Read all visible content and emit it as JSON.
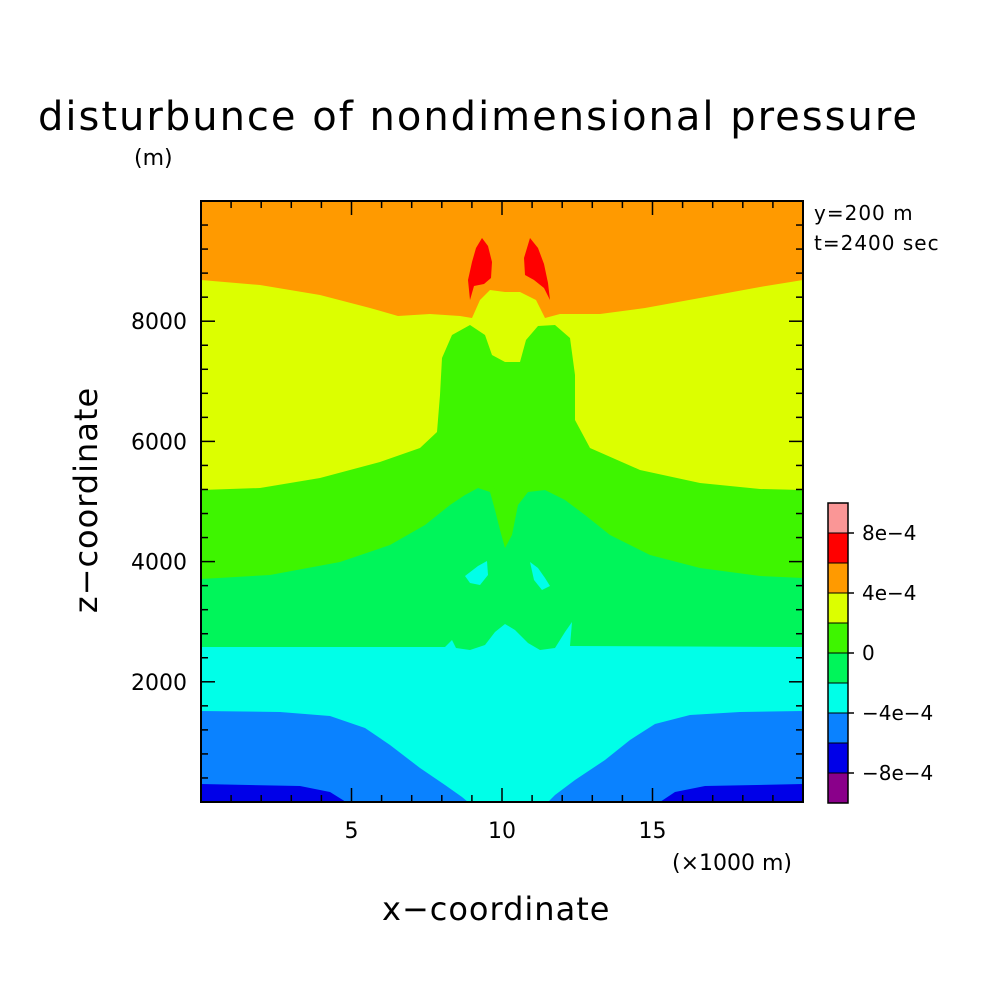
{
  "chart_data": {
    "type": "heatmap",
    "subtype": "filled-contour",
    "title": "disturbunce of nondimensional pressure",
    "xlabel": "x−coordinate",
    "ylabel": "z−coordinate",
    "x_unit": "(×1000 m)",
    "y_unit": "(m)",
    "annotations": [
      "y=200 m",
      "t=2400 sec"
    ],
    "xlim": [
      0,
      20000
    ],
    "ylim": [
      0,
      10000
    ],
    "x_ticks": [
      {
        "value": 5000,
        "label": "5"
      },
      {
        "value": 10000,
        "label": "10"
      },
      {
        "value": 15000,
        "label": "15"
      }
    ],
    "y_ticks": [
      {
        "value": 2000,
        "label": "2000"
      },
      {
        "value": 4000,
        "label": "4000"
      },
      {
        "value": 6000,
        "label": "6000"
      },
      {
        "value": 8000,
        "label": "8000"
      }
    ],
    "colorbar": {
      "labels": [
        "8e−4",
        "4e−4",
        "0",
        "−4e−4",
        "−8e−4"
      ],
      "levels_bottom_to_top": [
        {
          "range": [
            -0.0012,
            -0.0008
          ],
          "color": "#8a008a"
        },
        {
          "range": [
            -0.0008,
            -0.0006
          ],
          "color": "#0000e8"
        },
        {
          "range": [
            -0.0006,
            -0.0004
          ],
          "color": "#0a82ff"
        },
        {
          "range": [
            -0.0004,
            -0.0002
          ],
          "color": "#00ffe8"
        },
        {
          "range": [
            -0.0002,
            0.0
          ],
          "color": "#00f55a"
        },
        {
          "range": [
            0.0,
            0.0002
          ],
          "color": "#3ef500"
        },
        {
          "range": [
            0.0002,
            0.0004
          ],
          "color": "#dcff00"
        },
        {
          "range": [
            0.0004,
            0.0006
          ],
          "color": "#ff9a00"
        },
        {
          "range": [
            0.0006,
            0.0008
          ],
          "color": "#ff0000"
        },
        {
          "range": [
            0.0008,
            0.0012
          ],
          "color": "#fa9696"
        }
      ]
    }
  }
}
